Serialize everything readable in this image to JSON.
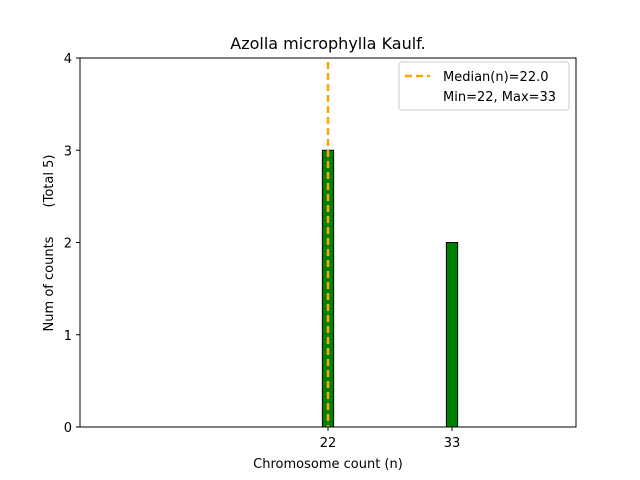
{
  "chart_data": {
    "type": "bar",
    "title": "Azolla microphylla Kaulf.",
    "xlabel": "Chromosome count (n)",
    "ylabel": "Num of counts",
    "ylabel_extra": "(Total 5)",
    "x": [
      22,
      33
    ],
    "values": [
      3,
      2
    ],
    "xticks": [
      "22",
      "33"
    ],
    "yticks": [
      "0",
      "1",
      "2",
      "3",
      "4"
    ],
    "xlim": [
      0,
      44
    ],
    "ylim": [
      0,
      4
    ],
    "bar_color": "#008000",
    "bar_edge_color": "#000000",
    "median": 22.0,
    "median_color": "#FFA500",
    "legend": {
      "placement": "top-right",
      "entries": [
        "Median(n)=22.0",
        "Min=22, Max=33"
      ]
    },
    "grid": false
  }
}
